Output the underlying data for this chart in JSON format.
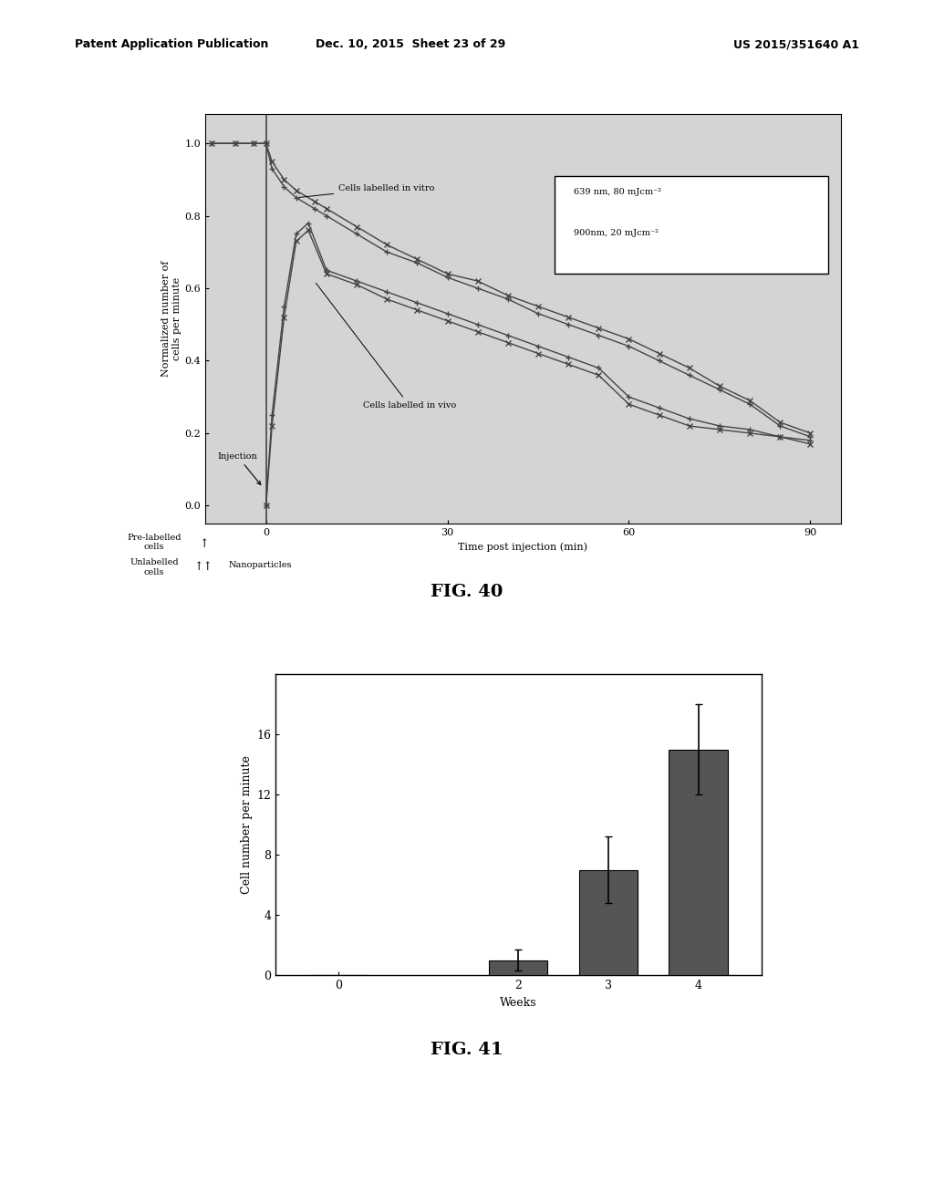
{
  "fig40": {
    "title": "FIG. 40",
    "ylabel": "Normalized number of\ncells per minute",
    "xlabel": "Time post injection (min)",
    "xlim": [
      -10,
      95
    ],
    "ylim": [
      -0.05,
      1.08
    ],
    "xticks": [
      0,
      30,
      60,
      90
    ],
    "ytick_vals": [
      0.0,
      0.2,
      0.4,
      0.6,
      0.8,
      1.0
    ],
    "ytick_labels": [
      "0.0",
      "0.2",
      "0.4",
      "0.6",
      "0.8",
      "1.0"
    ],
    "vitro_639_x": [
      -9,
      -5,
      -2,
      0,
      1,
      3,
      5,
      8,
      10,
      15,
      20,
      25,
      30,
      35,
      40,
      45,
      50,
      55,
      60,
      65,
      70,
      75,
      80,
      85,
      90
    ],
    "vitro_639_y": [
      1.0,
      1.0,
      1.0,
      1.0,
      0.93,
      0.88,
      0.85,
      0.82,
      0.8,
      0.75,
      0.7,
      0.67,
      0.63,
      0.6,
      0.57,
      0.53,
      0.5,
      0.47,
      0.44,
      0.4,
      0.36,
      0.32,
      0.28,
      0.22,
      0.19
    ],
    "vitro_900_x": [
      -9,
      -5,
      -2,
      0,
      1,
      3,
      5,
      8,
      10,
      15,
      20,
      25,
      30,
      35,
      40,
      45,
      50,
      55,
      60,
      65,
      70,
      75,
      80,
      85,
      90
    ],
    "vitro_900_y": [
      1.0,
      1.0,
      1.0,
      1.0,
      0.95,
      0.9,
      0.87,
      0.84,
      0.82,
      0.77,
      0.72,
      0.68,
      0.64,
      0.62,
      0.58,
      0.55,
      0.52,
      0.49,
      0.46,
      0.42,
      0.38,
      0.33,
      0.29,
      0.23,
      0.2
    ],
    "vivo_639_x": [
      0,
      1,
      3,
      5,
      7,
      10,
      15,
      20,
      25,
      30,
      35,
      40,
      45,
      50,
      55,
      60,
      65,
      70,
      75,
      80,
      85,
      90
    ],
    "vivo_639_y": [
      0.0,
      0.25,
      0.55,
      0.75,
      0.78,
      0.65,
      0.62,
      0.59,
      0.56,
      0.53,
      0.5,
      0.47,
      0.44,
      0.41,
      0.38,
      0.3,
      0.27,
      0.24,
      0.22,
      0.21,
      0.19,
      0.18
    ],
    "vivo_900_x": [
      0,
      1,
      3,
      5,
      7,
      10,
      15,
      20,
      25,
      30,
      35,
      40,
      45,
      50,
      55,
      60,
      65,
      70,
      75,
      80,
      85,
      90
    ],
    "vivo_900_y": [
      0.0,
      0.22,
      0.52,
      0.73,
      0.76,
      0.64,
      0.61,
      0.57,
      0.54,
      0.51,
      0.48,
      0.45,
      0.42,
      0.39,
      0.36,
      0.28,
      0.25,
      0.22,
      0.21,
      0.2,
      0.19,
      0.17
    ],
    "legend_box_text": [
      "639 nm, 80 mJcm⁻²",
      "900nm, 20 mJcm⁻²"
    ],
    "annotation_vitro": "Cells labelled in vitro",
    "annotation_vivo": "Cells labelled in vivo",
    "annotation_injection": "Injection",
    "prelabelled_text": "Pre-labelled\ncells",
    "unlabelled_text": "Unlabelled\ncells",
    "nanoparticles_text": "Nanoparticles",
    "bg_color": "#d4d4d4",
    "line_color": "#444444"
  },
  "fig41": {
    "title": "FIG. 41",
    "ylabel": "Cell number per minute",
    "xlabel": "Weeks",
    "categories": [
      0,
      2,
      3,
      4
    ],
    "values": [
      0.0,
      1.0,
      7.0,
      15.0
    ],
    "errors": [
      0.0,
      0.7,
      2.2,
      3.0
    ],
    "bar_color": "#555555",
    "ylim": [
      0,
      20
    ],
    "ytick_vals": [
      0,
      4,
      8,
      12,
      16
    ],
    "ytick_labels": [
      "0",
      "4",
      "8",
      "12",
      "16"
    ],
    "bg_color": "#ffffff"
  },
  "header_left": "Patent Application Publication",
  "header_mid": "Dec. 10, 2015  Sheet 23 of 29",
  "header_right": "US 2015/351640 A1",
  "bg_color": "#ffffff"
}
